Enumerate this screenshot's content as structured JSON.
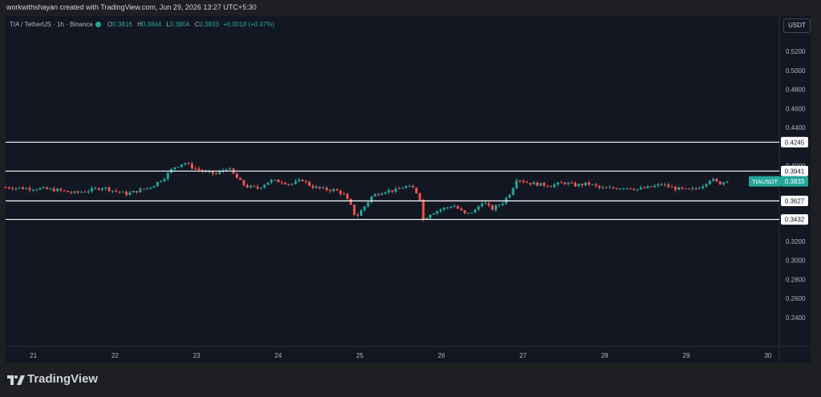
{
  "caption": "workwithshayan created with TradingView.com, Jun 29, 2026 13:27 UTC+5:30",
  "symbol": {
    "title": "TIA / TetherUS · 1h · Binance",
    "open_label": "O",
    "open": "0.3816",
    "high_label": "H",
    "high": "0.3844",
    "low_label": "L",
    "low": "0.3804",
    "close_label": "C",
    "close": "0.3833",
    "change": "+0.0018 (+0.47%)"
  },
  "currency_button": "USDT",
  "brand": {
    "name": "TradingView"
  },
  "colors": {
    "up": "#26a69a",
    "down": "#ef5350",
    "background": "#131722",
    "level_line": "#ffffff"
  },
  "chart_data": {
    "type": "candlestick",
    "interval": "1h",
    "y_ticks": [
      "0.5200",
      "0.5000",
      "0.4800",
      "0.4600",
      "0.4400",
      "0.4000",
      "0.3200",
      "0.3000",
      "0.2800",
      "0.2600",
      "0.2400"
    ],
    "x_ticks": [
      "21",
      "22",
      "23",
      "24",
      "25",
      "26",
      "27",
      "28",
      "29",
      "30"
    ],
    "ylim": [
      0.228,
      0.532
    ],
    "xlim": [
      20.66,
      30.12
    ],
    "horizontal_levels": [
      {
        "value": 0.4245,
        "label": "0.4245"
      },
      {
        "value": 0.3941,
        "label": "0.3941"
      },
      {
        "value": 0.3627,
        "label": "0.3627"
      },
      {
        "value": 0.3432,
        "label": "0.3432"
      }
    ],
    "last_price": {
      "symbol": "TIAUSDT",
      "value": 0.3833,
      "label": "0.3833"
    },
    "close_path": [
      [
        20.66,
        0.377
      ],
      [
        20.9,
        0.376
      ],
      [
        21.1,
        0.3755
      ],
      [
        21.3,
        0.374
      ],
      [
        21.5,
        0.371
      ],
      [
        21.7,
        0.374
      ],
      [
        21.85,
        0.377
      ],
      [
        22.0,
        0.373
      ],
      [
        22.15,
        0.37
      ],
      [
        22.3,
        0.374
      ],
      [
        22.45,
        0.378
      ],
      [
        22.6,
        0.387
      ],
      [
        22.72,
        0.398
      ],
      [
        22.85,
        0.403
      ],
      [
        22.95,
        0.398
      ],
      [
        23.1,
        0.393
      ],
      [
        23.25,
        0.391
      ],
      [
        23.38,
        0.398
      ],
      [
        23.5,
        0.386
      ],
      [
        23.6,
        0.378
      ],
      [
        23.75,
        0.376
      ],
      [
        23.9,
        0.384
      ],
      [
        24.05,
        0.383
      ],
      [
        24.15,
        0.38
      ],
      [
        24.3,
        0.385
      ],
      [
        24.4,
        0.378
      ],
      [
        24.55,
        0.375
      ],
      [
        24.7,
        0.374
      ],
      [
        24.8,
        0.37
      ],
      [
        24.9,
        0.356
      ],
      [
        24.95,
        0.345
      ],
      [
        25.05,
        0.356
      ],
      [
        25.15,
        0.368
      ],
      [
        25.3,
        0.373
      ],
      [
        25.45,
        0.374
      ],
      [
        25.55,
        0.378
      ],
      [
        25.65,
        0.376
      ],
      [
        25.73,
        0.368
      ],
      [
        25.78,
        0.342
      ],
      [
        25.85,
        0.349
      ],
      [
        26.0,
        0.354
      ],
      [
        26.15,
        0.358
      ],
      [
        26.3,
        0.348
      ],
      [
        26.42,
        0.353
      ],
      [
        26.5,
        0.362
      ],
      [
        26.62,
        0.354
      ],
      [
        26.75,
        0.361
      ],
      [
        26.85,
        0.372
      ],
      [
        26.92,
        0.386
      ],
      [
        27.05,
        0.382
      ],
      [
        27.2,
        0.38
      ],
      [
        27.35,
        0.379
      ],
      [
        27.5,
        0.382
      ],
      [
        27.65,
        0.379
      ],
      [
        27.8,
        0.381
      ],
      [
        27.95,
        0.376
      ],
      [
        28.1,
        0.376
      ],
      [
        28.25,
        0.377
      ],
      [
        28.4,
        0.375
      ],
      [
        28.55,
        0.377
      ],
      [
        28.7,
        0.38
      ],
      [
        28.85,
        0.376
      ],
      [
        29.0,
        0.374
      ],
      [
        29.1,
        0.375
      ],
      [
        29.2,
        0.379
      ],
      [
        29.3,
        0.386
      ],
      [
        29.4,
        0.381
      ],
      [
        29.5,
        0.3833
      ]
    ]
  }
}
